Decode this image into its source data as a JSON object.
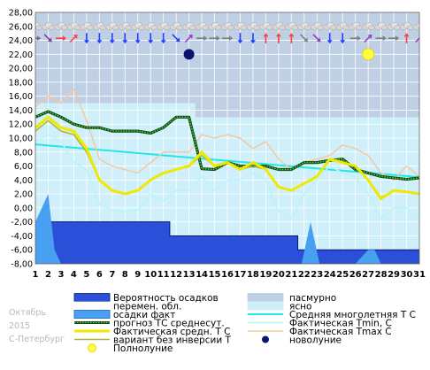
{
  "meta": {
    "month": "Октябрь",
    "year": "2015",
    "city": "С-Петербург"
  },
  "legend": [
    {
      "key": "precip_prob",
      "label": "Вероятность осадков",
      "kind": "box",
      "fill": "#2a4fd8",
      "stroke": "#0a1a70"
    },
    {
      "key": "overcast",
      "label": "пасмурно",
      "kind": "box",
      "fill": "#c0d0e4",
      "stroke": "#c0d0e4"
    },
    {
      "key": "variable_cloud",
      "label": "перемен. обл.",
      "kind": "box",
      "fill": "#ffffff",
      "stroke": "#ffffff"
    },
    {
      "key": "clear",
      "label": "ясно",
      "kind": "box",
      "fill": "#cfeffa",
      "stroke": "#cfeffa"
    },
    {
      "key": "precip_fact",
      "label": "осадки факт",
      "kind": "box",
      "fill": "#4aa0f0",
      "stroke": "#1a60c0"
    },
    {
      "key": "norm_avg",
      "label": "Средняя многолетняя Т С",
      "kind": "line",
      "color": "#1ee8e8",
      "width": 2
    },
    {
      "key": "forecast_avg",
      "label": "прогноз ТС среднесут.",
      "kind": "dotline",
      "color": "#2a8a2a",
      "width": 2.5
    },
    {
      "key": "fact_min",
      "label": "Фактическая Tmin, C",
      "kind": "line",
      "color": "#b8f4f8",
      "width": 1.5
    },
    {
      "key": "fact_avg",
      "label": "Фактическая средн. Т С",
      "kind": "line",
      "color": "#f0e800",
      "width": 3
    },
    {
      "key": "fact_max",
      "label": "Фактическая Tmax C",
      "kind": "line",
      "color": "#f4c8a0",
      "width": 1.5
    },
    {
      "key": "no_inversion",
      "label": "вариант без инверсии Т",
      "kind": "line",
      "color": "#a8b830",
      "width": 1.5
    },
    {
      "key": "new_moon",
      "label": "новолуние",
      "kind": "newmoon"
    },
    {
      "key": "full_moon",
      "label": "Полнолуние",
      "kind": "fullmoon"
    }
  ],
  "chart_data": {
    "type": "line",
    "title": "",
    "xlabel": "",
    "ylabel": "",
    "x": [
      1,
      2,
      3,
      4,
      5,
      6,
      7,
      8,
      9,
      10,
      11,
      12,
      13,
      14,
      15,
      16,
      17,
      18,
      19,
      20,
      21,
      22,
      23,
      24,
      25,
      26,
      27,
      28,
      29,
      30,
      31
    ],
    "xlim": [
      1,
      31
    ],
    "ylim": [
      -8,
      28
    ],
    "ytick_step": 2,
    "grid": true,
    "colors": {
      "plot_bg": "#cfeffa",
      "overcast": "#c0d0e4",
      "precip_prob": "#2a4fd8",
      "precip_fact": "#4aa0f0",
      "grid": "#ffffff"
    },
    "overcast_band": {
      "description_days": "upper overcast shading by day",
      "x": [
        1,
        2,
        3,
        4,
        5,
        6,
        7,
        8,
        9,
        10,
        11,
        12,
        13,
        14,
        15,
        16,
        17,
        18,
        19,
        20,
        21,
        22,
        23,
        24,
        25,
        26,
        27,
        28,
        29,
        30,
        31
      ],
      "top": [
        15,
        15,
        15,
        15,
        15,
        15,
        15,
        15,
        15,
        15,
        15,
        15,
        15,
        13,
        13,
        13,
        13,
        13,
        13,
        13,
        13,
        13,
        13,
        13,
        13,
        13,
        13,
        13,
        13,
        13,
        13
      ]
    },
    "precip_probability": {
      "x": [
        1,
        2,
        3,
        4,
        5,
        6,
        7,
        8,
        9,
        10,
        11,
        12,
        13,
        14,
        15,
        16,
        17,
        18,
        19,
        20,
        21,
        22,
        23,
        24,
        25,
        26,
        27,
        28,
        29,
        30,
        31
      ],
      "top": [
        -2,
        -2,
        -2,
        -2,
        -2,
        -2,
        -2,
        -2,
        -2,
        -2,
        -2,
        -4,
        -4,
        -4,
        -4,
        -4,
        -4,
        -4,
        -4,
        -4,
        -4,
        -6,
        -6,
        -6,
        -6,
        -6,
        -6,
        -6,
        -6,
        -6,
        -6
      ]
    },
    "precip_fact": {
      "x": [
        1,
        1.5,
        2,
        2.5,
        3,
        3.6,
        13,
        14.7,
        15.3,
        21.8,
        22.5,
        23.2,
        26,
        27,
        27.5,
        28
      ],
      "top": [
        -2,
        0,
        2,
        -6,
        -8,
        -8,
        -8,
        -8,
        -8,
        -8,
        -2,
        -8,
        -8,
        -6,
        -6,
        -8
      ]
    },
    "series": [
      {
        "key": "norm_avg",
        "name": "Средняя многолетняя Т С",
        "x": [
          1,
          31
        ],
        "values": [
          9.1,
          4.4
        ]
      },
      {
        "key": "fact_max",
        "name": "Фактическая Tmax C",
        "values": [
          14.5,
          16,
          15,
          17,
          12.5,
          7,
          6,
          5.5,
          5,
          6.5,
          8,
          8,
          8,
          10.5,
          10,
          10.5,
          10,
          8.5,
          9.5,
          7,
          5.5,
          6.5,
          7,
          7.5,
          9,
          8.5,
          7.5,
          5,
          4,
          6,
          4.5
        ]
      },
      {
        "key": "forecast_avg",
        "name": "прогноз ТС среднесут.",
        "values": [
          13,
          13.8,
          13,
          12,
          11.5,
          11.5,
          11,
          11,
          11,
          10.7,
          11.5,
          13,
          13,
          5.6,
          5.5,
          6.5,
          6,
          6,
          6,
          5.5,
          5.5,
          6.5,
          6.5,
          6.8,
          7,
          5.5,
          5,
          4.5,
          4.3,
          4.1,
          4.3
        ]
      },
      {
        "key": "fact_avg",
        "name": "Фактическая средн. Т С",
        "values": [
          11.5,
          13,
          11.5,
          11,
          8.5,
          4,
          2.5,
          2,
          2.5,
          4,
          5,
          5.5,
          6,
          8,
          6,
          6.5,
          5.5,
          6.5,
          5.5,
          3,
          2.5,
          3.5,
          4.5,
          7,
          6.5,
          6,
          4,
          1.3,
          2.5,
          2.3,
          2
        ]
      },
      {
        "key": "no_inversion",
        "name": "вариант без инверсии Т",
        "values": [
          11,
          12.5,
          11,
          10.5,
          8,
          4,
          2.5,
          2,
          2.5,
          4,
          5,
          5.5,
          6,
          7.5,
          6,
          6.5,
          5.5,
          6,
          5.5,
          3,
          2.5,
          3.5,
          4.5,
          6.8,
          6.5,
          6,
          4,
          1.5,
          2.5,
          2.3,
          2
        ]
      },
      {
        "key": "fact_min",
        "name": "Фактическая Tmin, C",
        "values": [
          9.5,
          10.5,
          9.5,
          6.5,
          5.5,
          0.5,
          -0.3,
          -0.5,
          -0.3,
          2,
          1,
          2.5,
          2.5,
          4.5,
          2.5,
          4,
          4,
          5,
          4,
          -0.5,
          -1.5,
          2,
          4,
          6,
          5,
          4.5,
          2,
          -1.5,
          0,
          0,
          -1.5
        ]
      }
    ],
    "new_moon": {
      "day": 13,
      "y": 22
    },
    "full_moon": {
      "day": 27,
      "y": 22
    },
    "weather_icons_row": {
      "y": 26,
      "icons": [
        "cloud",
        "cloud",
        "cloud",
        "cloud",
        "cloud",
        "cloud",
        "cloud",
        "cloud",
        "cloud",
        "cloud",
        "cloud",
        "cloud",
        "cloud",
        "cloud",
        "cloud",
        "cloud",
        "cloud",
        "cloud",
        "cloud",
        "cloud",
        "sun-cloud",
        "cloud",
        "sun-cloud",
        "sun-cloud",
        "cloud",
        "cloud",
        "sun-cloud",
        "cloud",
        "cloud",
        "cloud",
        "sun-cloud"
      ]
    },
    "wind_row": {
      "y": 24.3,
      "arrows": [
        {
          "day": 1,
          "dir": "e",
          "color": "#8060a0"
        },
        {
          "day": 2,
          "dir": "se",
          "color": "#7a40a0"
        },
        {
          "day": 3,
          "dir": "e",
          "color": "#ff4040"
        },
        {
          "day": 4,
          "dir": "ne",
          "color": "#ff4040"
        },
        {
          "day": 5,
          "dir": "s",
          "color": "#2040ff"
        },
        {
          "day": 6,
          "dir": "s",
          "color": "#2040ff"
        },
        {
          "day": 7,
          "dir": "s",
          "color": "#2040ff"
        },
        {
          "day": 8,
          "dir": "s",
          "color": "#2040ff"
        },
        {
          "day": 9,
          "dir": "s",
          "color": "#2040ff"
        },
        {
          "day": 10,
          "dir": "s",
          "color": "#2040ff"
        },
        {
          "day": 11,
          "dir": "s",
          "color": "#2040ff"
        },
        {
          "day": 12,
          "dir": "se",
          "color": "#2040ff"
        },
        {
          "day": 13,
          "dir": "ne",
          "color": "#9040c0"
        },
        {
          "day": 14,
          "dir": "e",
          "color": "#808080"
        },
        {
          "day": 15,
          "dir": "e",
          "color": "#808080"
        },
        {
          "day": 16,
          "dir": "e",
          "color": "#808080"
        },
        {
          "day": 17,
          "dir": "s",
          "color": "#2040ff"
        },
        {
          "day": 18,
          "dir": "s",
          "color": "#2040ff"
        },
        {
          "day": 19,
          "dir": "n",
          "color": "#ff4040"
        },
        {
          "day": 20,
          "dir": "n",
          "color": "#ff4040"
        },
        {
          "day": 21,
          "dir": "n",
          "color": "#ff4040"
        },
        {
          "day": 22,
          "dir": "se",
          "color": "#808080"
        },
        {
          "day": 23,
          "dir": "se",
          "color": "#9040c0"
        },
        {
          "day": 24,
          "dir": "s",
          "color": "#2040ff"
        },
        {
          "day": 25,
          "dir": "s",
          "color": "#2040ff"
        },
        {
          "day": 26,
          "dir": "e",
          "color": "#808080"
        },
        {
          "day": 27,
          "dir": "ne",
          "color": "#9040c0"
        },
        {
          "day": 28,
          "dir": "e",
          "color": "#808080"
        },
        {
          "day": 29,
          "dir": "e",
          "color": "#808080"
        },
        {
          "day": 30,
          "dir": "n",
          "color": "#ff4040"
        },
        {
          "day": 31,
          "dir": "ne",
          "color": "#9040c0"
        }
      ]
    }
  }
}
